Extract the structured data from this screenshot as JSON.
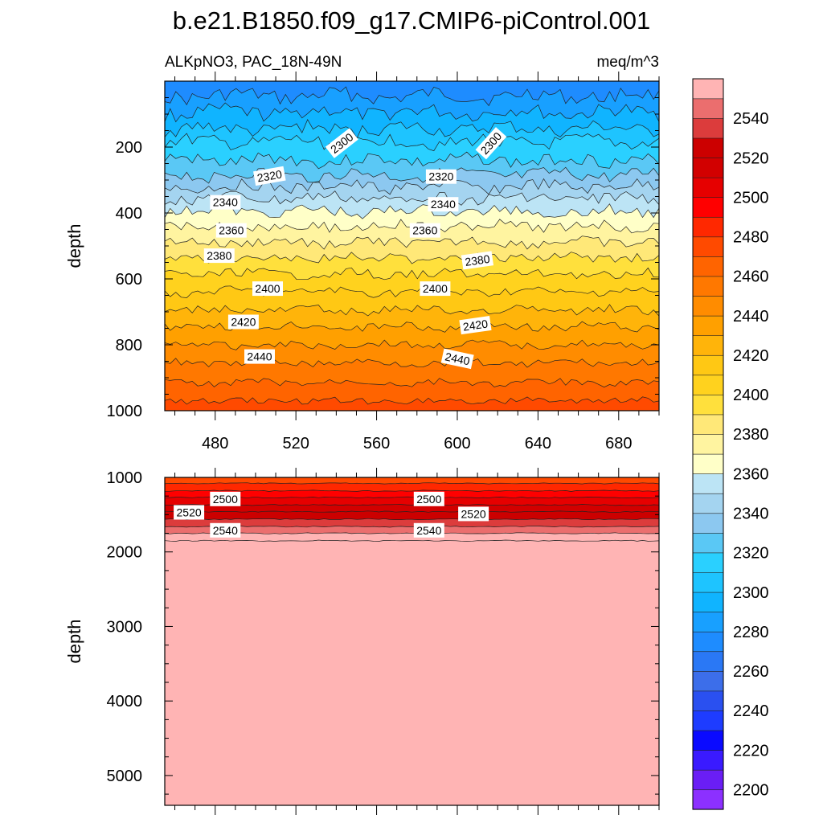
{
  "chart_data": [
    {
      "type": "contour",
      "title": "b.e21.B1850.f09_g17.CMIP6-piControl.001",
      "left_label": "ALKpNO3, PAC_18N-49N",
      "right_label": "meq/m^3",
      "ylabel": "depth",
      "xlim": [
        455,
        700
      ],
      "ylim": [
        1000,
        0
      ],
      "xticks": [
        480,
        520,
        560,
        600,
        640,
        680
      ],
      "yticks": [
        200,
        400,
        600,
        800,
        1000
      ],
      "contour_depths": [
        {
          "level": 2270,
          "depth": 45
        },
        {
          "level": 2280,
          "depth": 95
        },
        {
          "level": 2290,
          "depth": 145
        },
        {
          "level": 2300,
          "depth": 185
        },
        {
          "level": 2310,
          "depth": 240
        },
        {
          "level": 2320,
          "depth": 285
        },
        {
          "level": 2330,
          "depth": 320
        },
        {
          "level": 2340,
          "depth": 355
        },
        {
          "level": 2350,
          "depth": 395
        },
        {
          "level": 2360,
          "depth": 440
        },
        {
          "level": 2370,
          "depth": 490
        },
        {
          "level": 2380,
          "depth": 535
        },
        {
          "level": 2390,
          "depth": 585
        },
        {
          "level": 2400,
          "depth": 640
        },
        {
          "level": 2410,
          "depth": 695
        },
        {
          "level": 2420,
          "depth": 745
        },
        {
          "level": 2430,
          "depth": 800
        },
        {
          "level": 2440,
          "depth": 855
        },
        {
          "level": 2450,
          "depth": 915
        },
        {
          "level": 2460,
          "depth": 970
        }
      ],
      "contour_labels": [
        {
          "text": "2300",
          "x": 543,
          "depth": 190,
          "angle": -38
        },
        {
          "text": "2300",
          "x": 617,
          "depth": 190,
          "angle": -48
        },
        {
          "text": "2320",
          "x": 507,
          "depth": 290,
          "angle": -10
        },
        {
          "text": "2320",
          "x": 592,
          "depth": 292,
          "angle": 0
        },
        {
          "text": "2340",
          "x": 485,
          "depth": 370,
          "angle": 0
        },
        {
          "text": "2340",
          "x": 593,
          "depth": 376,
          "angle": 0
        },
        {
          "text": "2360",
          "x": 488,
          "depth": 455,
          "angle": 0
        },
        {
          "text": "2360",
          "x": 584,
          "depth": 455,
          "angle": 0
        },
        {
          "text": "2380",
          "x": 482,
          "depth": 532,
          "angle": 0
        },
        {
          "text": "2380",
          "x": 610,
          "depth": 546,
          "angle": -8
        },
        {
          "text": "2400",
          "x": 506,
          "depth": 632,
          "angle": 0
        },
        {
          "text": "2400",
          "x": 589,
          "depth": 632,
          "angle": 0
        },
        {
          "text": "2420",
          "x": 494,
          "depth": 733,
          "angle": 0
        },
        {
          "text": "2420",
          "x": 609,
          "depth": 743,
          "angle": -8
        },
        {
          "text": "2440",
          "x": 502,
          "depth": 838,
          "angle": 0
        },
        {
          "text": "2440",
          "x": 600,
          "depth": 845,
          "angle": 12
        }
      ]
    },
    {
      "type": "contour",
      "ylabel": "depth",
      "xlim": [
        455,
        700
      ],
      "ylim": [
        5400,
        1000
      ],
      "yticks": [
        1000,
        2000,
        3000,
        4000,
        5000
      ],
      "contour_depths": [
        {
          "level": 2470,
          "depth": 1080
        },
        {
          "level": 2480,
          "depth": 1180
        },
        {
          "level": 2490,
          "depth": 1270
        },
        {
          "level": 2500,
          "depth": 1370
        },
        {
          "level": 2510,
          "depth": 1460
        },
        {
          "level": 2520,
          "depth": 1560
        },
        {
          "level": 2530,
          "depth": 1660
        },
        {
          "level": 2540,
          "depth": 1750
        },
        {
          "level": 2550,
          "depth": 1850
        }
      ],
      "contour_labels": [
        {
          "text": "2500",
          "x": 485,
          "depth": 1300,
          "angle": 0
        },
        {
          "text": "2500",
          "x": 586,
          "depth": 1300,
          "angle": 0
        },
        {
          "text": "2520",
          "x": 467,
          "depth": 1480,
          "angle": 0
        },
        {
          "text": "2520",
          "x": 608,
          "depth": 1500,
          "angle": 0
        },
        {
          "text": "2540",
          "x": 485,
          "depth": 1720,
          "angle": 0
        },
        {
          "text": "2540",
          "x": 586,
          "depth": 1720,
          "angle": 0
        }
      ]
    }
  ],
  "colorbar": {
    "labels": [
      "2200",
      "2220",
      "2240",
      "2260",
      "2280",
      "2300",
      "2320",
      "2340",
      "2360",
      "2380",
      "2400",
      "2420",
      "2440",
      "2460",
      "2480",
      "2500",
      "2520",
      "2540"
    ],
    "colors": [
      "#8c30ff",
      "#6a1ef5",
      "#3a1aff",
      "#0a0aff",
      "#1e3cff",
      "#2a50f0",
      "#3c6eea",
      "#2a78f5",
      "#1e8cff",
      "#18a0ff",
      "#10b4ff",
      "#1ec4ff",
      "#2ad0ff",
      "#5ac8f5",
      "#8cc8f0",
      "#a4d4f0",
      "#bce4f5",
      "#ffffc8",
      "#fff4a0",
      "#ffe878",
      "#ffe03c",
      "#ffd21e",
      "#ffc814",
      "#ffb40a",
      "#ffa000",
      "#ff8c00",
      "#ff7800",
      "#ff6400",
      "#ff4a00",
      "#ff2800",
      "#ff0000",
      "#e60000",
      "#d20000",
      "#cc0000",
      "#dc3c3c",
      "#eb6e6e",
      "#ffb4b4"
    ]
  }
}
